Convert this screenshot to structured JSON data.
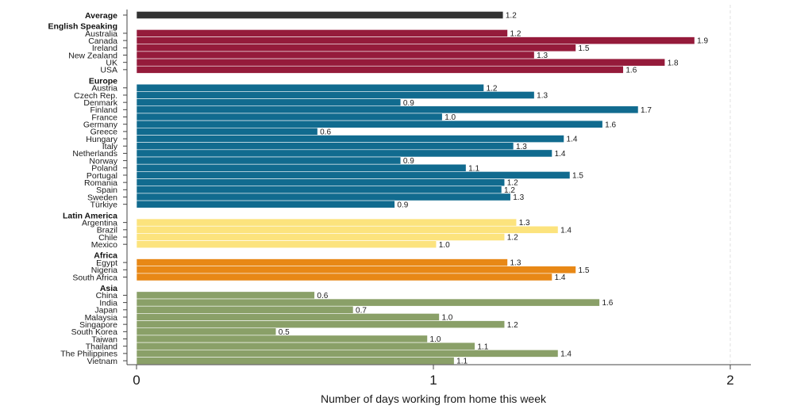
{
  "chart_data": {
    "type": "bar",
    "orientation": "horizontal",
    "title": "",
    "xlabel": "Number of days working from home this week",
    "ylabel": "",
    "xlim": [
      0,
      2
    ],
    "xticks": [
      "0",
      "1",
      "2"
    ],
    "grid": "dashed vertical line at 2",
    "legend": "none",
    "groups": [
      {
        "name": "",
        "color": "#333333",
        "rows": [
          {
            "label": "Average",
            "value": 1.235,
            "value_label": "1.2",
            "bold": true
          }
        ]
      },
      {
        "name": "English Speaking",
        "color": "#951b3b",
        "rows": [
          {
            "label": "Australia",
            "value": 1.25,
            "value_label": "1.2"
          },
          {
            "label": "Canada",
            "value": 1.88,
            "value_label": "1.9"
          },
          {
            "label": "Ireland",
            "value": 1.48,
            "value_label": "1.5"
          },
          {
            "label": "New Zealand",
            "value": 1.34,
            "value_label": "1.3"
          },
          {
            "label": "UK",
            "value": 1.78,
            "value_label": "1.8"
          },
          {
            "label": "USA",
            "value": 1.64,
            "value_label": "1.6"
          }
        ]
      },
      {
        "name": "Europe",
        "color": "#116b8f",
        "rows": [
          {
            "label": "Austria",
            "value": 1.17,
            "value_label": "1.2"
          },
          {
            "label": "Czech Rep.",
            "value": 1.34,
            "value_label": "1.3"
          },
          {
            "label": "Denmark",
            "value": 0.89,
            "value_label": "0.9"
          },
          {
            "label": "Finland",
            "value": 1.69,
            "value_label": "1.7"
          },
          {
            "label": "France",
            "value": 1.03,
            "value_label": "1.0"
          },
          {
            "label": "Germany",
            "value": 1.57,
            "value_label": "1.6"
          },
          {
            "label": "Greece",
            "value": 0.61,
            "value_label": "0.6"
          },
          {
            "label": "Hungary",
            "value": 1.44,
            "value_label": "1.4"
          },
          {
            "label": "Italy",
            "value": 1.27,
            "value_label": "1.3"
          },
          {
            "label": "Netherlands",
            "value": 1.4,
            "value_label": "1.4"
          },
          {
            "label": "Norway",
            "value": 0.89,
            "value_label": "0.9"
          },
          {
            "label": "Poland",
            "value": 1.11,
            "value_label": "1.1"
          },
          {
            "label": "Portugal",
            "value": 1.46,
            "value_label": "1.5"
          },
          {
            "label": "Romania",
            "value": 1.24,
            "value_label": "1.2"
          },
          {
            "label": "Spain",
            "value": 1.23,
            "value_label": "1.2"
          },
          {
            "label": "Sweden",
            "value": 1.26,
            "value_label": "1.3"
          },
          {
            "label": "Türkiye",
            "value": 0.87,
            "value_label": "0.9"
          }
        ]
      },
      {
        "name": "Latin America",
        "color": "#fce37d",
        "rows": [
          {
            "label": "Argentina",
            "value": 1.28,
            "value_label": "1.3"
          },
          {
            "label": "Brazil",
            "value": 1.42,
            "value_label": "1.4"
          },
          {
            "label": "Chile",
            "value": 1.24,
            "value_label": "1.2"
          },
          {
            "label": "Mexico",
            "value": 1.01,
            "value_label": "1.0"
          }
        ]
      },
      {
        "name": "Africa",
        "color": "#e88816",
        "rows": [
          {
            "label": "Egypt",
            "value": 1.25,
            "value_label": "1.3"
          },
          {
            "label": "Nigeria",
            "value": 1.48,
            "value_label": "1.5"
          },
          {
            "label": "South Africa",
            "value": 1.4,
            "value_label": "1.4"
          }
        ]
      },
      {
        "name": "Asia",
        "color": "#8aa068",
        "rows": [
          {
            "label": "China",
            "value": 0.6,
            "value_label": "0.6"
          },
          {
            "label": "India",
            "value": 1.56,
            "value_label": "1.6"
          },
          {
            "label": "Japan",
            "value": 0.73,
            "value_label": "0.7"
          },
          {
            "label": "Malaysia",
            "value": 1.02,
            "value_label": "1.0"
          },
          {
            "label": "Singapore",
            "value": 1.24,
            "value_label": "1.2"
          },
          {
            "label": "South Korea",
            "value": 0.47,
            "value_label": "0.5"
          },
          {
            "label": "Taiwan",
            "value": 0.98,
            "value_label": "1.0"
          },
          {
            "label": "Thailand",
            "value": 1.14,
            "value_label": "1.1"
          },
          {
            "label": "The Philippines",
            "value": 1.42,
            "value_label": "1.4"
          },
          {
            "label": "Vietnam",
            "value": 1.07,
            "value_label": "1.1"
          }
        ]
      }
    ]
  }
}
